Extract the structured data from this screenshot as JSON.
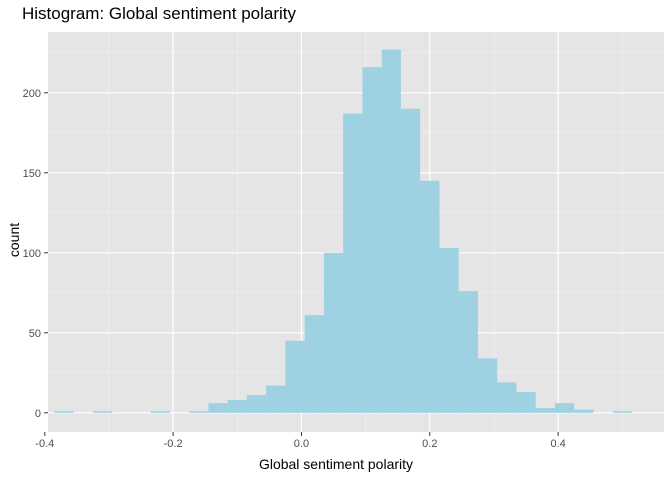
{
  "chart_data": {
    "type": "bar",
    "title": "Histogram: Global sentiment polarity",
    "xlabel": "Global sentiment polarity",
    "ylabel": "count",
    "bar_color": "#9ED1E2",
    "panel_color": "#E5E5E5",
    "grid": true,
    "xlim": [
      -0.395,
      0.565
    ],
    "ylim": [
      -12,
      238
    ],
    "x_ticks": [
      -0.4,
      -0.2,
      0.0,
      0.2,
      0.4
    ],
    "x_tick_labels": [
      "-0.4",
      "-0.2",
      "0.0",
      "0.2",
      "0.4"
    ],
    "y_ticks": [
      0,
      50,
      100,
      150,
      200
    ],
    "y_tick_labels": [
      "0",
      "50",
      "100",
      "150",
      "200"
    ],
    "bins": [
      {
        "x0": -0.385,
        "x1": -0.355,
        "count": 1
      },
      {
        "x0": -0.325,
        "x1": -0.295,
        "count": 1
      },
      {
        "x0": -0.235,
        "x1": -0.205,
        "count": 1
      },
      {
        "x0": -0.175,
        "x1": -0.145,
        "count": 1
      },
      {
        "x0": -0.145,
        "x1": -0.115,
        "count": 6
      },
      {
        "x0": -0.115,
        "x1": -0.085,
        "count": 8
      },
      {
        "x0": -0.085,
        "x1": -0.055,
        "count": 11
      },
      {
        "x0": -0.055,
        "x1": -0.025,
        "count": 17
      },
      {
        "x0": -0.025,
        "x1": 0.005,
        "count": 45
      },
      {
        "x0": 0.005,
        "x1": 0.035,
        "count": 61
      },
      {
        "x0": 0.035,
        "x1": 0.065,
        "count": 100
      },
      {
        "x0": 0.065,
        "x1": 0.095,
        "count": 187
      },
      {
        "x0": 0.095,
        "x1": 0.125,
        "count": 216
      },
      {
        "x0": 0.125,
        "x1": 0.155,
        "count": 227
      },
      {
        "x0": 0.155,
        "x1": 0.185,
        "count": 190
      },
      {
        "x0": 0.185,
        "x1": 0.215,
        "count": 145
      },
      {
        "x0": 0.215,
        "x1": 0.245,
        "count": 103
      },
      {
        "x0": 0.245,
        "x1": 0.275,
        "count": 76
      },
      {
        "x0": 0.275,
        "x1": 0.305,
        "count": 34
      },
      {
        "x0": 0.305,
        "x1": 0.335,
        "count": 19
      },
      {
        "x0": 0.335,
        "x1": 0.365,
        "count": 13
      },
      {
        "x0": 0.365,
        "x1": 0.395,
        "count": 3
      },
      {
        "x0": 0.395,
        "x1": 0.425,
        "count": 6
      },
      {
        "x0": 0.425,
        "x1": 0.455,
        "count": 2
      },
      {
        "x0": 0.485,
        "x1": 0.515,
        "count": 1
      }
    ]
  }
}
